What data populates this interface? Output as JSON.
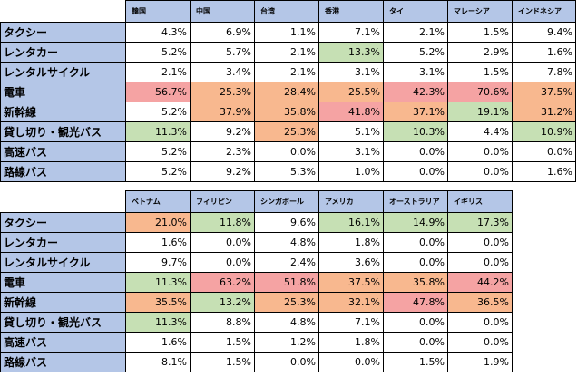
{
  "table1": {
    "columns": [
      "韓国",
      "中国",
      "台湾",
      "香港",
      "タイ",
      "マレーシア",
      "インドネシア"
    ],
    "rows": [
      {
        "label": "タクシー",
        "values": [
          "4.3%",
          "6.9%",
          "1.1%",
          "7.1%",
          "2.1%",
          "1.5%",
          "9.4%"
        ],
        "shades": [
          "w",
          "w",
          "w",
          "w",
          "w",
          "w",
          "w"
        ]
      },
      {
        "label": "レンタカー",
        "values": [
          "5.2%",
          "5.7%",
          "2.1%",
          "13.3%",
          "5.2%",
          "2.9%",
          "1.6%"
        ],
        "shades": [
          "w",
          "w",
          "w",
          "g",
          "w",
          "w",
          "w"
        ]
      },
      {
        "label": "レンタルサイクル",
        "values": [
          "2.1%",
          "3.4%",
          "2.1%",
          "3.1%",
          "3.1%",
          "1.5%",
          "7.8%"
        ],
        "shades": [
          "w",
          "w",
          "w",
          "w",
          "w",
          "w",
          "w"
        ]
      },
      {
        "label": "電車",
        "values": [
          "56.7%",
          "25.3%",
          "28.4%",
          "25.5%",
          "42.3%",
          "70.6%",
          "37.5%"
        ],
        "shades": [
          "r",
          "o",
          "o",
          "o",
          "r",
          "r",
          "o"
        ]
      },
      {
        "label": "新幹線",
        "values": [
          "5.2%",
          "37.9%",
          "35.8%",
          "41.8%",
          "37.1%",
          "19.1%",
          "31.2%"
        ],
        "shades": [
          "w",
          "o",
          "o",
          "r",
          "o",
          "g",
          "o"
        ]
      },
      {
        "label": "貸し切り・観光バス",
        "values": [
          "11.3%",
          "9.2%",
          "25.3%",
          "5.1%",
          "10.3%",
          "4.4%",
          "10.9%"
        ],
        "shades": [
          "g",
          "w",
          "o",
          "w",
          "g",
          "w",
          "g"
        ]
      },
      {
        "label": "高速バス",
        "values": [
          "5.2%",
          "2.3%",
          "0.0%",
          "3.1%",
          "0.0%",
          "0.0%",
          "0.0%"
        ],
        "shades": [
          "w",
          "w",
          "w",
          "w",
          "w",
          "w",
          "w"
        ]
      },
      {
        "label": "路線バス",
        "values": [
          "5.2%",
          "9.2%",
          "5.3%",
          "1.0%",
          "0.0%",
          "0.0%",
          "1.6%"
        ],
        "shades": [
          "w",
          "w",
          "w",
          "w",
          "w",
          "w",
          "w"
        ]
      }
    ]
  },
  "table2": {
    "columns": [
      "ベトナム",
      "フィリピン",
      "シンガポール",
      "アメリカ",
      "オーストラリア",
      "イギリス"
    ],
    "rows": [
      {
        "label": "タクシー",
        "values": [
          "21.0%",
          "11.8%",
          "9.6%",
          "16.1%",
          "14.9%",
          "17.3%"
        ],
        "shades": [
          "o",
          "g",
          "w",
          "g",
          "g",
          "g"
        ]
      },
      {
        "label": "レンタカー",
        "values": [
          "1.6%",
          "0.0%",
          "4.8%",
          "1.8%",
          "0.0%",
          "0.0%"
        ],
        "shades": [
          "w",
          "w",
          "w",
          "w",
          "w",
          "w"
        ]
      },
      {
        "label": "レンタルサイクル",
        "values": [
          "9.7%",
          "0.0%",
          "2.4%",
          "3.6%",
          "0.0%",
          "0.0%"
        ],
        "shades": [
          "w",
          "w",
          "w",
          "w",
          "w",
          "w"
        ]
      },
      {
        "label": "電車",
        "values": [
          "11.3%",
          "63.2%",
          "51.8%",
          "37.5%",
          "35.8%",
          "44.2%"
        ],
        "shades": [
          "g",
          "r",
          "r",
          "o",
          "o",
          "r"
        ]
      },
      {
        "label": "新幹線",
        "values": [
          "35.5%",
          "13.2%",
          "25.3%",
          "32.1%",
          "47.8%",
          "36.5%"
        ],
        "shades": [
          "o",
          "g",
          "o",
          "o",
          "r",
          "o"
        ]
      },
      {
        "label": "貸し切り・観光バス",
        "values": [
          "11.3%",
          "8.8%",
          "4.8%",
          "7.1%",
          "0.0%",
          "0.0%"
        ],
        "shades": [
          "g",
          "w",
          "w",
          "w",
          "w",
          "w"
        ]
      },
      {
        "label": "高速バス",
        "values": [
          "1.6%",
          "1.5%",
          "1.2%",
          "1.8%",
          "0.0%",
          "0.0%"
        ],
        "shades": [
          "w",
          "w",
          "w",
          "w",
          "w",
          "w"
        ]
      },
      {
        "label": "路線バス",
        "values": [
          "8.1%",
          "1.5%",
          "0.0%",
          "0.0%",
          "1.5%",
          "1.9%"
        ],
        "shades": [
          "w",
          "w",
          "w",
          "w",
          "w",
          "w"
        ]
      }
    ]
  },
  "colors": {
    "header_bg": "#b4c6e7",
    "high": "#f5a3a3",
    "mid": "#f8b88f",
    "low": "#c6e0b4"
  }
}
